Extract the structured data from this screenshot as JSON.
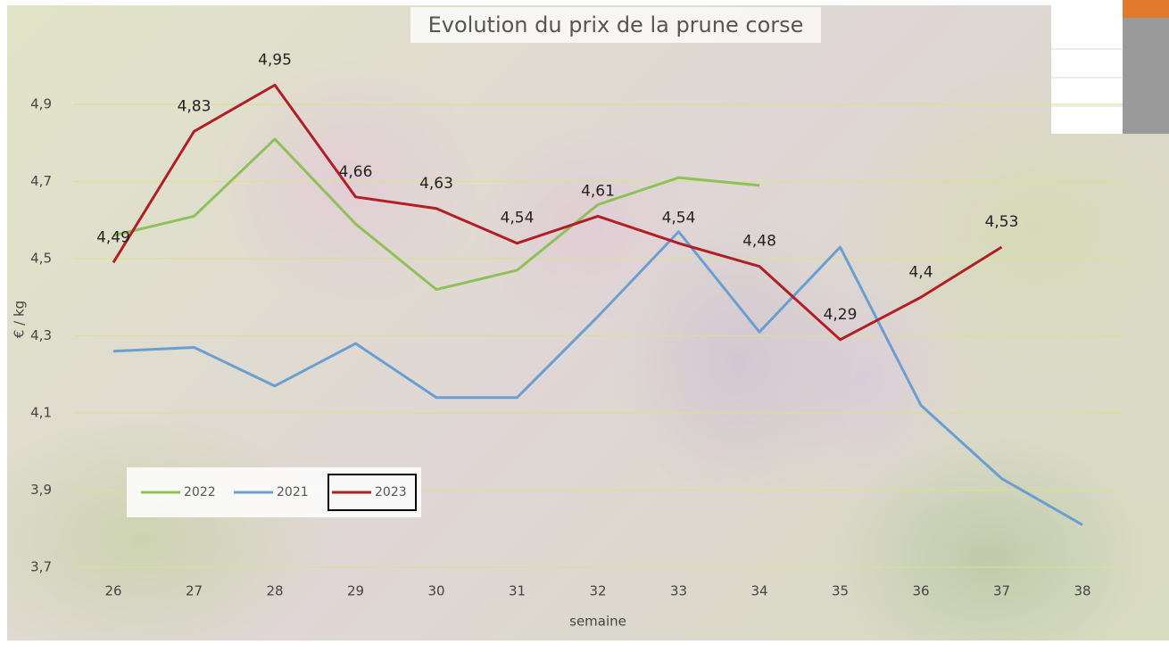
{
  "chart_data": {
    "type": "line",
    "title": "Evolution du prix de la prune corse",
    "x_label": "semaine",
    "y_label": "€ / kg",
    "categories": [
      "26",
      "27",
      "28",
      "29",
      "30",
      "31",
      "32",
      "33",
      "34",
      "35",
      "36",
      "37",
      "38"
    ],
    "series": [
      {
        "name": "2022",
        "color": "#8fc15a",
        "values": [
          4.56,
          4.61,
          4.81,
          4.59,
          4.42,
          4.47,
          4.64,
          4.71,
          4.69,
          null,
          null,
          null,
          null
        ]
      },
      {
        "name": "2021",
        "color": "#6a9fd0",
        "values": [
          4.26,
          4.27,
          4.17,
          4.28,
          4.14,
          4.14,
          4.35,
          4.57,
          4.31,
          4.53,
          4.12,
          3.93,
          3.81
        ]
      },
      {
        "name": "2023",
        "color": "#b01e26",
        "values": [
          4.49,
          4.83,
          4.95,
          4.66,
          4.63,
          4.54,
          4.61,
          4.54,
          4.48,
          4.29,
          4.4,
          4.53,
          null
        ],
        "value_labels": [
          "4,49",
          "4,83",
          "4,95",
          "4,66",
          "4,63",
          "4,54",
          "4,61",
          "4,54",
          "4,48",
          "4,29",
          "4,4",
          "4,53",
          null
        ]
      }
    ],
    "ylim": [
      3.7,
      5.1
    ],
    "yticks": [
      {
        "value": 3.7,
        "label": "3,7"
      },
      {
        "value": 3.9,
        "label": "3,9"
      },
      {
        "value": 4.1,
        "label": "4,1"
      },
      {
        "value": 4.3,
        "label": "4,3"
      },
      {
        "value": 4.5,
        "label": "4,5"
      },
      {
        "value": 4.7,
        "label": "4,7"
      },
      {
        "value": 4.9,
        "label": "4,9"
      }
    ],
    "grid": true,
    "legend": "bottom-left"
  }
}
